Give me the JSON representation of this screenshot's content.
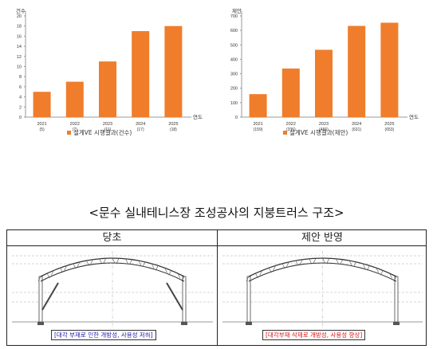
{
  "chart_data": [
    {
      "type": "bar",
      "ylabel": "건수",
      "xlabel": "연도",
      "categories": [
        "2021",
        "2022",
        "2023",
        "2024",
        "2025"
      ],
      "category_sublabels": [
        "(5)",
        "(7)",
        "(11)",
        "(17)",
        "(18)"
      ],
      "ylim": [
        0,
        20
      ],
      "yticks": [
        0,
        2,
        4,
        6,
        8,
        10,
        12,
        14,
        16,
        18,
        20
      ],
      "grid": false,
      "legend": "bottom",
      "series": [
        {
          "name": "설계VE 시행결과(건수)",
          "values": [
            5,
            7,
            11,
            17,
            18
          ],
          "color": "#ef7d2b"
        }
      ]
    },
    {
      "type": "bar",
      "ylabel": "제안",
      "xlabel": "연도",
      "categories": [
        "2021",
        "2022",
        "2023",
        "2024",
        "2025"
      ],
      "category_sublabels": [
        "(159)",
        "(336)",
        "(466)",
        "(631)",
        "(653)"
      ],
      "ylim": [
        0,
        700
      ],
      "yticks": [
        0,
        100,
        200,
        300,
        400,
        500,
        600,
        700
      ],
      "grid": false,
      "legend": "bottom",
      "series": [
        {
          "name": "설계VE 시행결과(제안)",
          "values": [
            159,
            336,
            466,
            631,
            653
          ],
          "color": "#ef7d2b"
        }
      ]
    }
  ],
  "caption": "<문수 실내테니스장 조성공사의 지붕트러스 구조>",
  "comparison": {
    "before": {
      "title": "당초",
      "note": "[대각 부재로 인한 개방성, 사용성 저하]"
    },
    "after": {
      "title": "제안 반영",
      "note": "[대각부재 삭제로 개방성, 사용성 향상]"
    }
  }
}
